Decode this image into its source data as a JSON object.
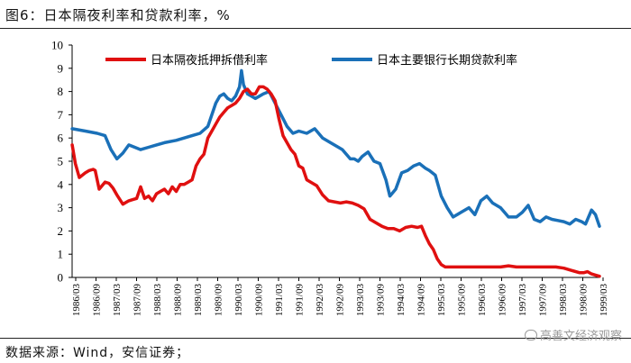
{
  "page": {
    "title": "图6：日本隔夜利率和贷款利率，%",
    "source": "数据来源：Wind，安信证券；",
    "watermark": "高善文经济观察"
  },
  "chart_data": {
    "type": "line",
    "title": "图6：日本隔夜利率和贷款利率，%",
    "ylim": [
      0,
      10
    ],
    "yticks": [
      0,
      1,
      2,
      3,
      4,
      5,
      6,
      7,
      8,
      9,
      10
    ],
    "x_range": [
      1986.167,
      1999.5
    ],
    "xtick_labels": [
      "1986/03",
      "1986/09",
      "1987/03",
      "1987/09",
      "1988/03",
      "1988/09",
      "1989/03",
      "1989/09",
      "1990/03",
      "1990/09",
      "1991/03",
      "1991/09",
      "1992/03",
      "1992/09",
      "1993/03",
      "1993/09",
      "1994/03",
      "1994/09",
      "1995/03",
      "1995/09",
      "1996/03",
      "1996/09",
      "1997/03",
      "1997/09",
      "1998/03",
      "1998/09",
      "1999/03"
    ],
    "legend": {
      "position": "top"
    },
    "series": [
      {
        "name": "日本隔夜抵押拆借利率",
        "color": "#e01010",
        "x": [
          1986.17,
          1986.25,
          1986.35,
          1986.5,
          1986.6,
          1986.7,
          1986.75,
          1986.85,
          1987.0,
          1987.1,
          1987.2,
          1987.3,
          1987.45,
          1987.6,
          1987.7,
          1987.8,
          1987.9,
          1988.0,
          1988.1,
          1988.2,
          1988.3,
          1988.4,
          1988.5,
          1988.6,
          1988.7,
          1988.8,
          1988.9,
          1989.0,
          1989.1,
          1989.2,
          1989.3,
          1989.4,
          1989.5,
          1989.6,
          1989.7,
          1989.8,
          1989.9,
          1990.0,
          1990.1,
          1990.2,
          1990.3,
          1990.4,
          1990.5,
          1990.6,
          1990.7,
          1990.8,
          1990.9,
          1991.0,
          1991.1,
          1991.2,
          1991.3,
          1991.4,
          1991.5,
          1991.6,
          1991.7,
          1991.8,
          1991.9,
          1992.0,
          1992.1,
          1992.2,
          1992.35,
          1992.5,
          1992.65,
          1992.8,
          1992.95,
          1993.1,
          1993.25,
          1993.4,
          1993.55,
          1993.7,
          1993.85,
          1994.0,
          1994.15,
          1994.3,
          1994.45,
          1994.6,
          1994.75,
          1994.9,
          1995.0,
          1995.1,
          1995.2,
          1995.3,
          1995.4,
          1995.5,
          1995.6,
          1995.7,
          1995.85,
          1996.0,
          1996.2,
          1996.4,
          1996.6,
          1996.8,
          1997.0,
          1997.2,
          1997.4,
          1997.6,
          1997.8,
          1998.0,
          1998.2,
          1998.4,
          1998.6,
          1998.8,
          1999.0,
          1999.1,
          1999.2,
          1999.3,
          1999.4,
          1999.5
        ],
        "values": [
          5.7,
          4.9,
          4.3,
          4.5,
          4.6,
          4.65,
          4.6,
          3.8,
          4.1,
          4.05,
          3.85,
          3.55,
          3.15,
          3.3,
          3.35,
          3.4,
          3.9,
          3.4,
          3.5,
          3.3,
          3.6,
          3.7,
          3.8,
          3.6,
          3.9,
          3.7,
          4.0,
          4.0,
          4.1,
          4.2,
          4.8,
          5.1,
          5.3,
          6.0,
          6.3,
          6.6,
          6.9,
          7.1,
          7.3,
          7.4,
          7.5,
          7.7,
          8.0,
          8.1,
          7.9,
          7.9,
          8.2,
          8.2,
          8.1,
          7.9,
          7.6,
          6.8,
          6.1,
          5.8,
          5.5,
          5.3,
          4.8,
          4.7,
          4.2,
          4.1,
          3.95,
          3.55,
          3.3,
          3.25,
          3.2,
          3.25,
          3.2,
          3.1,
          2.95,
          2.5,
          2.35,
          2.2,
          2.1,
          2.1,
          2.0,
          2.15,
          2.2,
          2.15,
          2.2,
          1.8,
          1.45,
          1.2,
          0.8,
          0.55,
          0.45,
          0.45,
          0.45,
          0.45,
          0.45,
          0.45,
          0.45,
          0.45,
          0.45,
          0.5,
          0.45,
          0.45,
          0.45,
          0.45,
          0.45,
          0.45,
          0.4,
          0.3,
          0.2,
          0.2,
          0.25,
          0.15,
          0.1,
          0.05
        ]
      },
      {
        "name": "日本主要银行长期贷款利率",
        "color": "#1a70b8",
        "x": [
          1986.17,
          1986.5,
          1986.8,
          1987.0,
          1987.15,
          1987.3,
          1987.45,
          1987.6,
          1987.75,
          1987.9,
          1988.1,
          1988.3,
          1988.5,
          1988.8,
          1989.0,
          1989.2,
          1989.4,
          1989.6,
          1989.7,
          1989.8,
          1989.9,
          1990.0,
          1990.1,
          1990.2,
          1990.3,
          1990.4,
          1990.45,
          1990.5,
          1990.6,
          1990.7,
          1990.8,
          1990.9,
          1991.0,
          1991.15,
          1991.3,
          1991.45,
          1991.6,
          1991.75,
          1991.9,
          1992.1,
          1992.3,
          1992.5,
          1992.7,
          1992.9,
          1993.0,
          1993.1,
          1993.2,
          1993.3,
          1993.4,
          1993.5,
          1993.65,
          1993.8,
          1993.95,
          1994.1,
          1994.2,
          1994.35,
          1994.5,
          1994.65,
          1994.8,
          1994.95,
          1995.1,
          1995.2,
          1995.35,
          1995.5,
          1995.65,
          1995.8,
          1996.0,
          1996.2,
          1996.35,
          1996.5,
          1996.65,
          1996.8,
          1997.0,
          1997.2,
          1997.4,
          1997.55,
          1997.7,
          1997.85,
          1998.0,
          1998.15,
          1998.3,
          1998.45,
          1998.6,
          1998.75,
          1998.9,
          1999.05,
          1999.15,
          1999.3,
          1999.4,
          1999.5
        ],
        "values": [
          6.4,
          6.3,
          6.2,
          6.1,
          5.5,
          5.1,
          5.35,
          5.7,
          5.6,
          5.5,
          5.6,
          5.7,
          5.8,
          5.9,
          6.0,
          6.1,
          6.2,
          6.5,
          7.0,
          7.5,
          7.8,
          7.9,
          7.7,
          7.6,
          7.8,
          8.2,
          8.9,
          8.3,
          7.9,
          7.8,
          7.7,
          7.8,
          7.9,
          8.0,
          7.5,
          7.0,
          6.5,
          6.2,
          6.3,
          6.2,
          6.4,
          6.0,
          5.8,
          5.6,
          5.5,
          5.3,
          5.1,
          5.1,
          5.0,
          5.2,
          5.4,
          5.0,
          4.9,
          4.2,
          3.5,
          3.8,
          4.5,
          4.6,
          4.8,
          4.9,
          4.7,
          4.6,
          4.4,
          3.5,
          3.0,
          2.6,
          2.8,
          3.0,
          2.7,
          3.3,
          3.5,
          3.2,
          3.0,
          2.6,
          2.6,
          2.8,
          3.1,
          2.5,
          2.4,
          2.6,
          2.5,
          2.45,
          2.4,
          2.3,
          2.5,
          2.4,
          2.3,
          2.9,
          2.7,
          2.2
        ]
      }
    ]
  }
}
